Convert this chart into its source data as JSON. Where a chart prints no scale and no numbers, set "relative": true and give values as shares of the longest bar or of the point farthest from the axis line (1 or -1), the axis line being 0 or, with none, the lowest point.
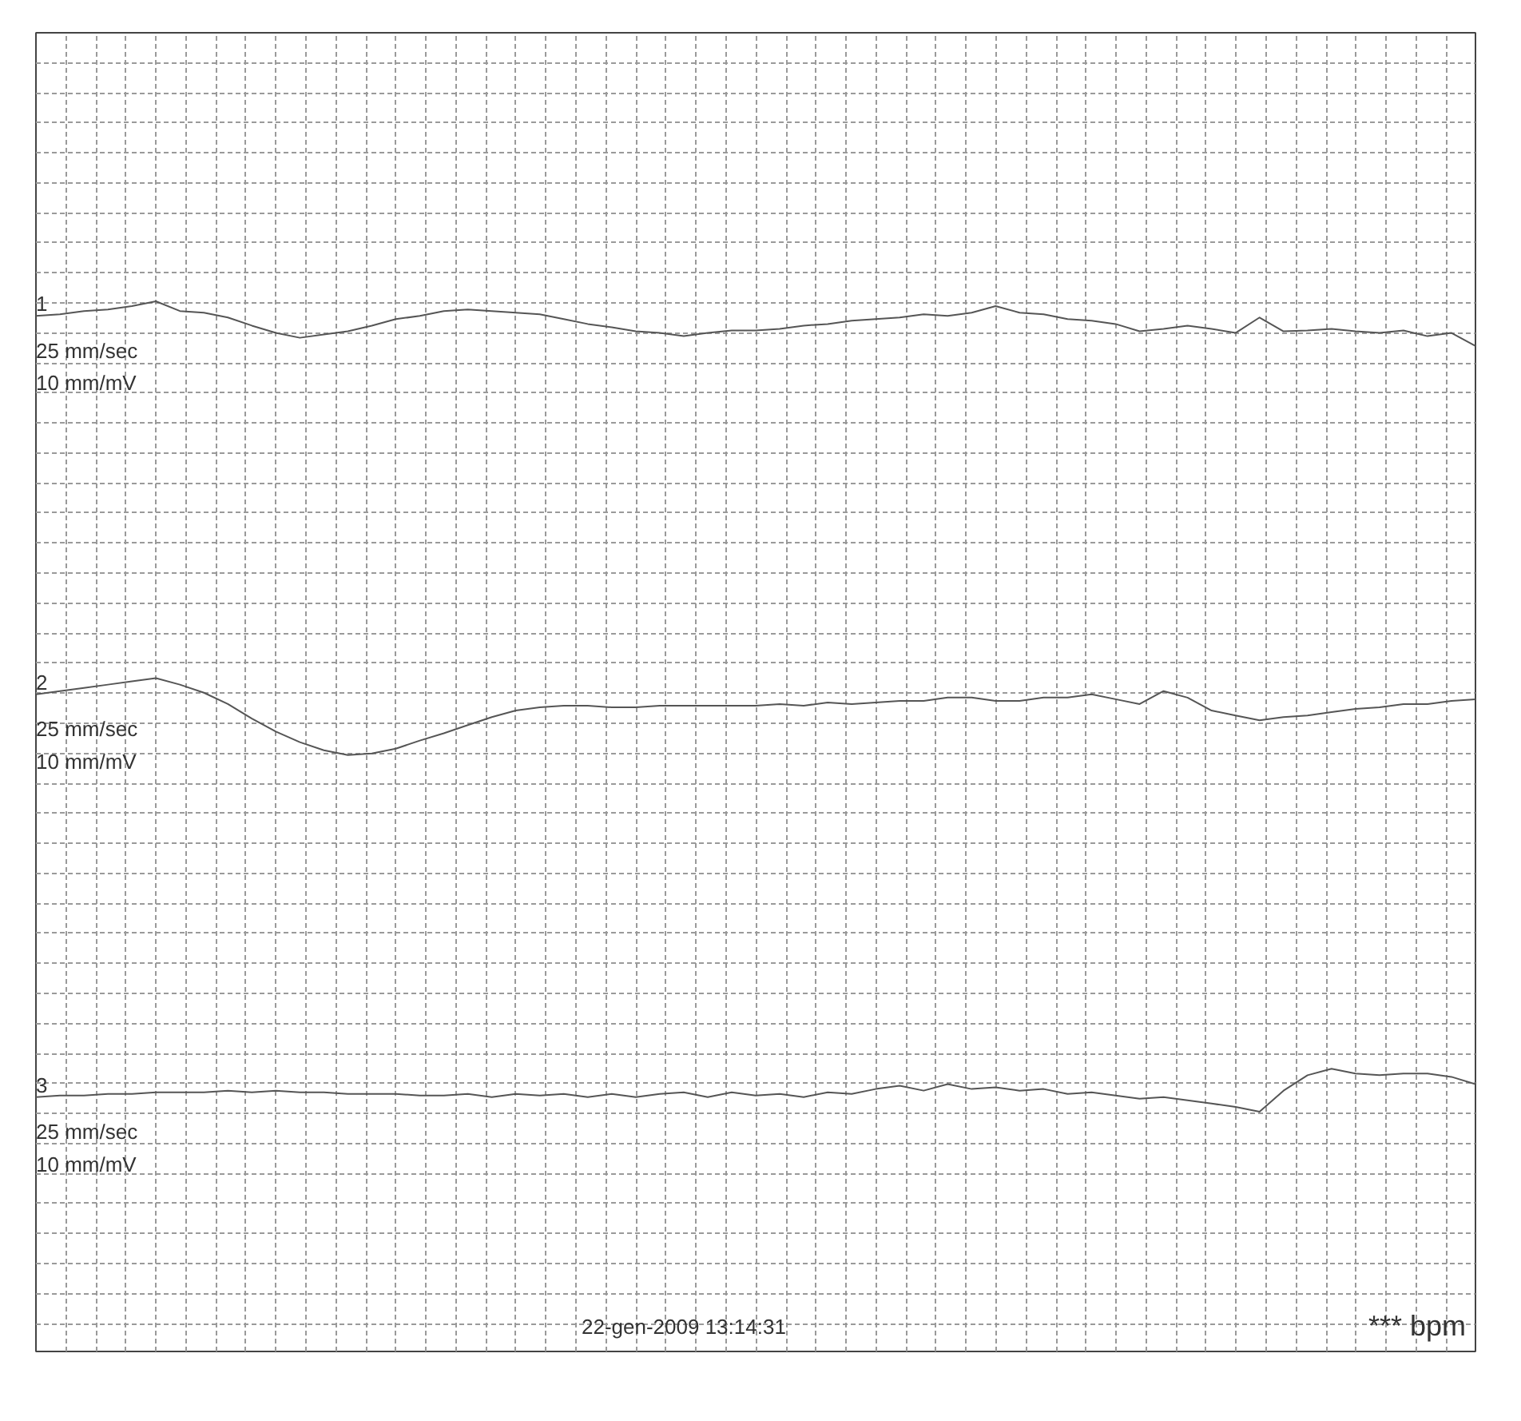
{
  "chart_data": {
    "type": "line",
    "relative": true,
    "grid": true,
    "marker": "none",
    "line_style": "solid",
    "categories": [
      null,
      null,
      null,
      null,
      null,
      null,
      null,
      null,
      null,
      null,
      null,
      null,
      null,
      null,
      null,
      null,
      null,
      null,
      null,
      null,
      null,
      null,
      null,
      null,
      null,
      null,
      null,
      null,
      null,
      null,
      null,
      null,
      null,
      null,
      null,
      null,
      null,
      null,
      null,
      null,
      null,
      null,
      null,
      null,
      null,
      null,
      null,
      null,
      null,
      null,
      null,
      null,
      null,
      null,
      null,
      null,
      null,
      null,
      null,
      null,
      null
    ],
    "series": [
      {
        "name": "1",
        "color": "#555555",
        "values": [
          0.982,
          0.984,
          0.988,
          0.99,
          0.994,
          1.0,
          0.988,
          0.986,
          0.98,
          0.97,
          0.961,
          0.955,
          0.959,
          0.963,
          0.97,
          0.978,
          0.982,
          0.988,
          0.99,
          0.988,
          0.986,
          0.984,
          0.978,
          0.972,
          0.968,
          0.963,
          0.961,
          0.957,
          0.961,
          0.964,
          0.964,
          0.966,
          0.97,
          0.972,
          0.976,
          0.978,
          0.98,
          0.984,
          0.982,
          0.986,
          0.994,
          0.986,
          0.984,
          0.978,
          0.976,
          0.972,
          0.963,
          0.966,
          0.97,
          0.966,
          0.961,
          0.98,
          0.963,
          0.964,
          0.966,
          0.963,
          0.961,
          0.964,
          0.957,
          0.961,
          0.945
        ]
      },
      {
        "name": "2",
        "color": "#555555",
        "values": [
          0.515,
          0.519,
          0.523,
          0.527,
          0.531,
          0.535,
          0.527,
          0.517,
          0.503,
          0.485,
          0.469,
          0.456,
          0.446,
          0.44,
          0.442,
          0.448,
          0.458,
          0.467,
          0.477,
          0.487,
          0.495,
          0.499,
          0.501,
          0.501,
          0.499,
          0.499,
          0.501,
          0.501,
          0.501,
          0.501,
          0.501,
          0.503,
          0.501,
          0.505,
          0.503,
          0.505,
          0.507,
          0.507,
          0.511,
          0.511,
          0.507,
          0.507,
          0.511,
          0.511,
          0.515,
          0.509,
          0.503,
          0.519,
          0.511,
          0.495,
          0.489,
          0.483,
          0.487,
          0.489,
          0.493,
          0.497,
          0.499,
          0.503,
          0.503,
          0.507,
          0.509
        ]
      },
      {
        "name": "3",
        "color": "#555555",
        "values": [
          0.018,
          0.02,
          0.02,
          0.022,
          0.022,
          0.024,
          0.024,
          0.024,
          0.026,
          0.024,
          0.026,
          0.024,
          0.024,
          0.022,
          0.022,
          0.022,
          0.02,
          0.02,
          0.022,
          0.018,
          0.022,
          0.02,
          0.022,
          0.018,
          0.022,
          0.018,
          0.022,
          0.024,
          0.018,
          0.024,
          0.02,
          0.022,
          0.018,
          0.024,
          0.022,
          0.028,
          0.032,
          0.026,
          0.034,
          0.028,
          0.03,
          0.026,
          0.028,
          0.022,
          0.024,
          0.02,
          0.016,
          0.018,
          0.014,
          0.01,
          0.006,
          0.0,
          0.026,
          0.045,
          0.053,
          0.047,
          0.045,
          0.047,
          0.047,
          0.043,
          0.034
        ]
      }
    ],
    "annotations": [
      "25 mm/sec",
      "10 mm/mV",
      "25 mm/sec",
      "10 mm/mV",
      "25 mm/sec",
      "10 mm/mV",
      "22-gen-2009 13:14:31",
      "*** bpm"
    ]
  }
}
